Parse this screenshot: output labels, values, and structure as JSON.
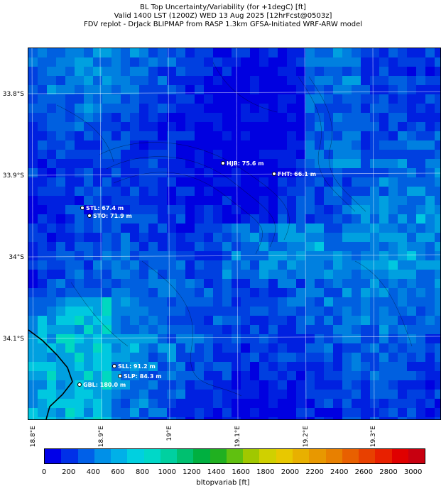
{
  "title": {
    "line1": "BL Top Uncertainty/Variability (for +1degC) [ft]",
    "line2": "Valid 1400 LST (1200Z) WED 13 Aug 2025 [12hrFcst@0503z]",
    "line3": "FDV replot - DrJack BLIPMAP from RASP 1.3km GFSA-Initiated WRF-ARW model"
  },
  "map": {
    "lat_labels": [
      "33.8°S",
      "33.9°S",
      "34°S",
      "34.1°S"
    ],
    "lon_labels": [
      "18.8°E",
      "18.9°E",
      "19°E",
      "19.1°E",
      "19.2°E",
      "19.3°E"
    ],
    "stations": [
      {
        "label": "HJB: 75.6 m"
      },
      {
        "label": "FHT: 66.1 m"
      },
      {
        "label": "STL: 67.4 m"
      },
      {
        "label": "STO: 71.9 m"
      },
      {
        "label": "SLL: 91.2 m"
      },
      {
        "label": "SLP: 84.3 m"
      },
      {
        "label": "GBL: 180.0 m"
      }
    ]
  },
  "colorbar": {
    "label": "bltopvariab [ft]",
    "ticks": [
      "0",
      "200",
      "400",
      "600",
      "800",
      "1000",
      "1200",
      "1400",
      "1600",
      "1800",
      "2000",
      "2200",
      "2400",
      "2600",
      "2800",
      "3000"
    ],
    "colors": [
      "#0000e8",
      "#0030e8",
      "#0060e8",
      "#0090e8",
      "#00b0e8",
      "#00d0e0",
      "#00d8c8",
      "#00d0a0",
      "#00c070",
      "#00b040",
      "#20b020",
      "#60c010",
      "#a0c800",
      "#d0d000",
      "#e8c800",
      "#e8b000",
      "#e89800",
      "#e88000",
      "#e86000",
      "#e84000",
      "#e82000",
      "#e00000",
      "#c80010"
    ],
    "map_palette": [
      "#0000e0",
      "#0020e0",
      "#0040e0",
      "#0060e0",
      "#0080e0",
      "#00a0e0",
      "#00c8e0",
      "#00d8c0"
    ]
  }
}
